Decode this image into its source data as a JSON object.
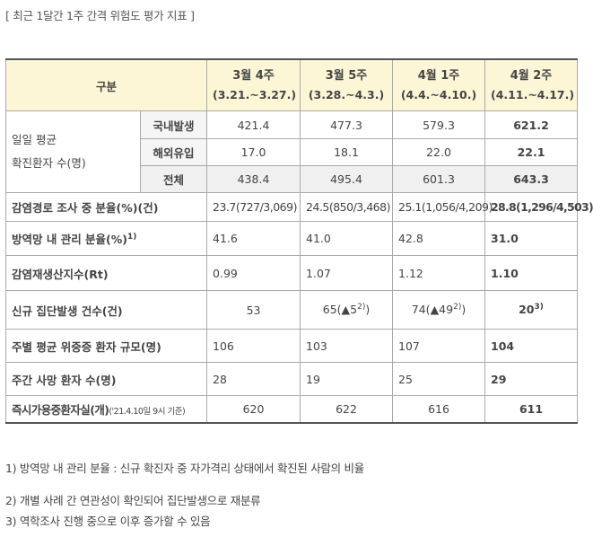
{
  "title": "[ 최근 1달간 1주 간격 위험도 평가 지표 ]",
  "header": {
    "gubun": "구분",
    "weeks": [
      {
        "name": "3월 4주",
        "range": "(3.21.~3.27.)"
      },
      {
        "name": "3월 5주",
        "range": "(3.28.~4.3.)"
      },
      {
        "name": "4월 1주",
        "range": "(4.4.~4.10.)"
      },
      {
        "name": "4월 2주",
        "range": "(4.11.~4.17.)"
      }
    ]
  },
  "daily": {
    "label_line1": "일일 평균",
    "label_line2": "확진환자 수(명)",
    "rows": [
      {
        "label": "국내발생",
        "values": [
          "421.4",
          "477.3",
          "579.3",
          "621.2"
        ]
      },
      {
        "label": "해외유입",
        "values": [
          "17.0",
          "18.1",
          "22.0",
          "22.1"
        ]
      },
      {
        "label": "전체",
        "values": [
          "438.4",
          "495.4",
          "601.3",
          "643.3"
        ]
      }
    ]
  },
  "rows": {
    "investigation": {
      "label": "감염경로 조사 중 분율(%)(건)",
      "values": [
        "23.7(727/3,069)",
        "24.5(850/3,468)",
        "25.1(1,056/4,209)",
        "28.8(1,296/4,503)"
      ]
    },
    "managed": {
      "label": "방역망 내 관리 분율(%)",
      "sup": "1)",
      "values": [
        "41.6",
        "41.0",
        "42.8",
        "31.0"
      ]
    },
    "rt": {
      "label": "감염재생산지수(Rt)",
      "values": [
        "0.99",
        "1.07",
        "1.12",
        "1.10"
      ]
    },
    "cluster": {
      "label": "신규 집단발생 건수(건)",
      "v1": "53",
      "v2": "65(▲5",
      "v2_sup": "2)",
      "v2_end": ")",
      "v3": "74(▲49",
      "v3_sup": "2)",
      "v3_end": ")",
      "v4": "20",
      "v4_sup": "3)"
    },
    "severe": {
      "label": "주별 평균 위중증 환자 규모(명)",
      "values": [
        "106",
        "103",
        "107",
        "104"
      ]
    },
    "deaths": {
      "label": "주간 사망 환자 수(명)",
      "values": [
        "28",
        "19",
        "25",
        "29"
      ]
    },
    "beds": {
      "label": "즉시가용중환자실(개)",
      "label_small": "('21.4.10일 9시 기준)",
      "values": [
        "620",
        "622",
        "616",
        "611"
      ]
    }
  },
  "notes": [
    "1) 방역망 내 관리 분율 : 신규 확진자 중 자가격리 상태에서 확진된 사람의 비율",
    "2) 개별 사례 간 연관성이 확인되어 집단발생으로 재분류",
    "3) 역학조사 진행 중으로 이후 증가할 수 있음"
  ]
}
